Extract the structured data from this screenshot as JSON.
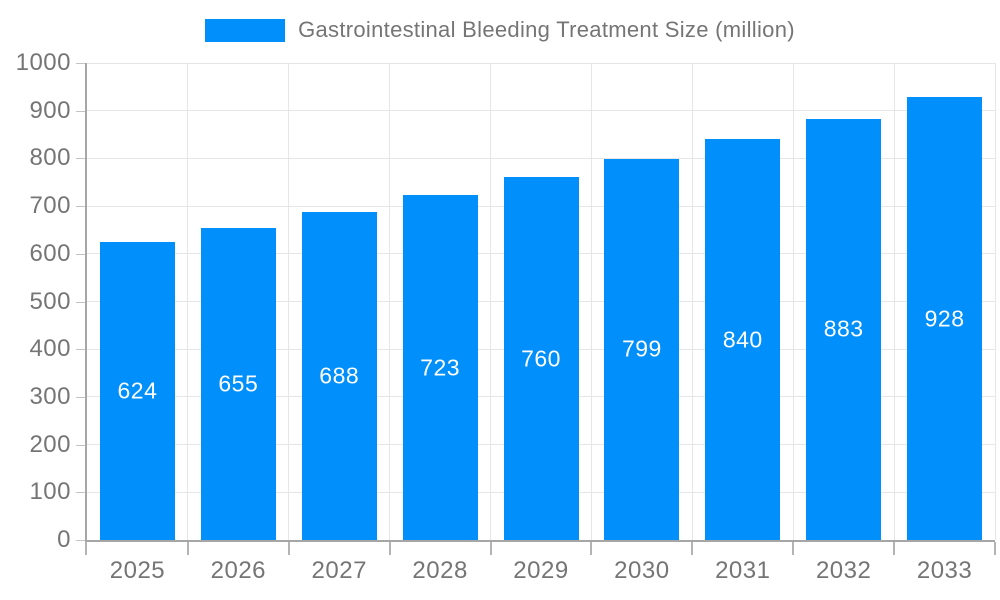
{
  "legend": {
    "label": "Gastrointestinal Bleeding Treatment Size (million)"
  },
  "colors": {
    "bar": "#008FFB",
    "axis": "#a6a6a6",
    "grid": "#e6e6e6",
    "tick_label": "#757575",
    "value_label": "#ffffff",
    "background": "#ffffff"
  },
  "chart_data": {
    "type": "bar",
    "title": "Gastrointestinal Bleeding Treatment Size (million)",
    "categories": [
      "2025",
      "2026",
      "2027",
      "2028",
      "2029",
      "2030",
      "2031",
      "2032",
      "2033"
    ],
    "values": [
      624,
      655,
      688,
      723,
      760,
      799,
      840,
      883,
      928
    ],
    "xlabel": "",
    "ylabel": "",
    "ylim": [
      0,
      1000
    ],
    "yticks": [
      0,
      100,
      200,
      300,
      400,
      500,
      600,
      700,
      800,
      900,
      1000
    ],
    "grid": true,
    "legend_position": "top",
    "value_label_position": "inside-center"
  }
}
